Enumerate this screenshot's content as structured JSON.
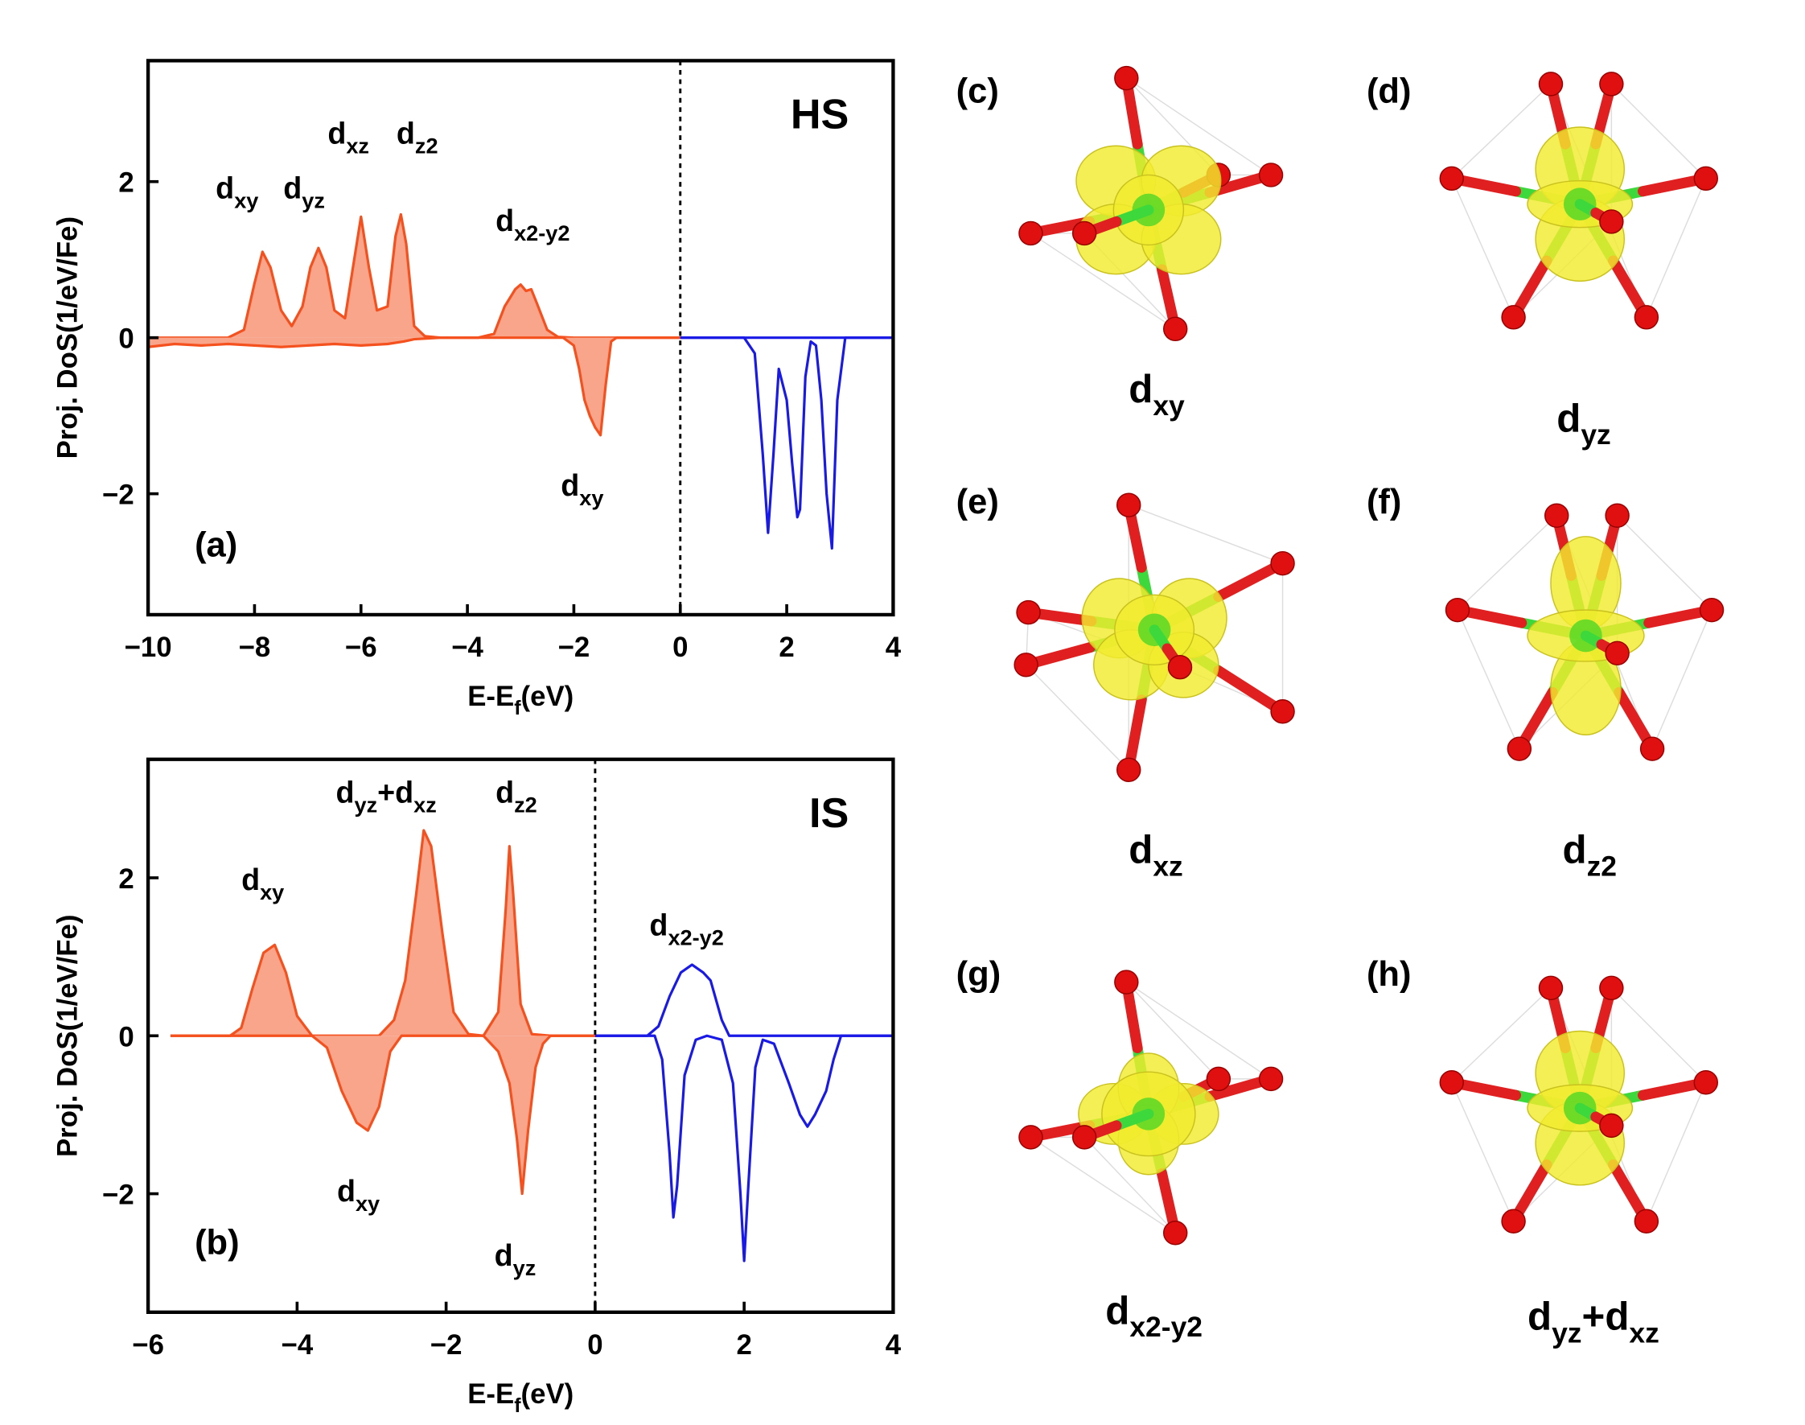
{
  "chart_data": [
    {
      "type": "line",
      "panel_label": "(a)",
      "state_label": "HS",
      "xlabel": [
        "E-E",
        "f",
        "(eV)"
      ],
      "ylabel": "Proj. DoS(1/eV/Fe)",
      "xlim": [
        -10,
        4
      ],
      "ylim": [
        -3.55,
        3.55
      ],
      "vline": 0,
      "xticks": [
        {
          "value": -10,
          "label": "−10"
        },
        {
          "value": -8,
          "label": "−8"
        },
        {
          "value": -6,
          "label": "−6"
        },
        {
          "value": -4,
          "label": "−4"
        },
        {
          "value": -2,
          "label": "−2"
        },
        0,
        2,
        4
      ],
      "yticks": [
        {
          "value": -2,
          "label": "−2"
        },
        0,
        2
      ],
      "annotations": [
        [
          "d",
          "xy"
        ],
        [
          "d",
          "yz"
        ],
        [
          "d",
          "xz"
        ],
        [
          "d",
          "z2"
        ],
        [
          "d",
          "x2-y2"
        ],
        [
          "d",
          "xy"
        ]
      ],
      "series": [
        {
          "color": "#f4511e",
          "fill": "#f8a58c",
          "x": [
            -10,
            -9,
            -8.5,
            -8.2,
            -8.0,
            -7.85,
            -7.7,
            -7.5,
            -7.3,
            -7.1,
            -6.95,
            -6.8,
            -6.65,
            -6.5,
            -6.3,
            -6.15,
            -6.0,
            -5.85,
            -5.7,
            -5.5,
            -5.35,
            -5.25,
            -5.15,
            -5.0,
            -4.8,
            -4.5,
            -3.8,
            -3.5,
            -3.3,
            -3.1,
            -3.0,
            -2.9,
            -2.8,
            -2.7,
            -2.5,
            -2.3,
            -2.0,
            0
          ],
          "values": [
            0,
            0,
            0,
            0.1,
            0.7,
            1.1,
            0.9,
            0.35,
            0.15,
            0.4,
            0.9,
            1.15,
            0.9,
            0.35,
            0.25,
            0.9,
            1.55,
            0.9,
            0.35,
            0.4,
            1.3,
            1.58,
            1.2,
            0.15,
            0.02,
            0,
            0,
            0.05,
            0.4,
            0.62,
            0.68,
            0.6,
            0.62,
            0.45,
            0.1,
            0.01,
            0,
            0
          ]
        },
        {
          "color": "#f4511e",
          "fill": "#f8a58c",
          "x": [
            -10,
            -9.5,
            -9,
            -8.5,
            -8,
            -7.5,
            -7,
            -6.5,
            -6,
            -5.5,
            -5.2,
            -5,
            -4.5,
            -2.2,
            -2.0,
            -1.9,
            -1.8,
            -1.7,
            -1.6,
            -1.5,
            -1.4,
            -1.3,
            -1.2,
            0
          ],
          "values": [
            -0.12,
            -0.08,
            -0.1,
            -0.08,
            -0.1,
            -0.12,
            -0.1,
            -0.08,
            -0.1,
            -0.08,
            -0.05,
            -0.02,
            0,
            0,
            -0.1,
            -0.4,
            -0.8,
            -1.0,
            -1.15,
            -1.25,
            -0.6,
            -0.05,
            0,
            0
          ]
        },
        {
          "color": "#1a1ae6",
          "x": [
            0,
            4
          ],
          "values": [
            0,
            0
          ]
        },
        {
          "color": "#1a1ae6",
          "x": [
            0,
            1.2,
            1.4,
            1.55,
            1.65,
            1.75,
            1.85,
            2.0,
            2.1,
            2.2,
            2.25,
            2.35,
            2.45,
            2.55,
            2.65,
            2.75,
            2.85,
            2.95,
            3.1,
            4
          ],
          "values": [
            0,
            0,
            -0.2,
            -1.5,
            -2.5,
            -1.5,
            -0.4,
            -0.8,
            -1.6,
            -2.3,
            -2.2,
            -0.5,
            -0.05,
            -0.1,
            -0.8,
            -2.0,
            -2.7,
            -0.8,
            0,
            0
          ]
        }
      ]
    },
    {
      "type": "line",
      "panel_label": "(b)",
      "state_label": "IS",
      "xlabel": [
        "E-E",
        "f",
        "(eV)"
      ],
      "ylabel": "Proj. DoS(1/eV/Fe)",
      "xlim": [
        -6,
        4
      ],
      "ylim": [
        -3.5,
        3.5
      ],
      "vline": 0,
      "xticks": [
        {
          "value": -6,
          "label": "−6"
        },
        {
          "value": -4,
          "label": "−4"
        },
        {
          "value": -2,
          "label": "−2"
        },
        0,
        2,
        4
      ],
      "yticks": [
        {
          "value": -2,
          "label": "−2"
        },
        0,
        2
      ],
      "annotations": [
        [
          "d",
          "xy"
        ],
        [
          "d",
          "yz",
          "+d",
          "xz"
        ],
        [
          "d",
          "z2"
        ],
        [
          "d",
          "x2-y2"
        ],
        [
          "d",
          "xy"
        ],
        [
          "d",
          "yz"
        ]
      ],
      "series": [
        {
          "color": "#f4511e",
          "fill": "#f8a58c",
          "x": [
            -5.7,
            -4.9,
            -4.75,
            -4.6,
            -4.45,
            -4.3,
            -4.15,
            -4.0,
            -3.8,
            -2.9,
            -2.7,
            -2.55,
            -2.4,
            -2.3,
            -2.2,
            -2.05,
            -1.9,
            -1.7,
            -1.5,
            -1.3,
            -1.2,
            -1.15,
            -1.1,
            -1.0,
            -0.85,
            -0.6,
            0
          ],
          "values": [
            0,
            0,
            0.1,
            0.6,
            1.05,
            1.15,
            0.8,
            0.25,
            0,
            0,
            0.2,
            0.7,
            1.8,
            2.6,
            2.4,
            1.3,
            0.3,
            0.02,
            0,
            0.3,
            1.6,
            2.4,
            1.8,
            0.4,
            0.02,
            0,
            0
          ]
        },
        {
          "color": "#f4511e",
          "fill": "#f8a58c",
          "x": [
            -5.7,
            -3.8,
            -3.6,
            -3.4,
            -3.2,
            -3.05,
            -2.9,
            -2.75,
            -2.6,
            -1.5,
            -1.3,
            -1.15,
            -1.05,
            -0.98,
            -0.9,
            -0.8,
            -0.7,
            -0.6,
            0
          ],
          "values": [
            0,
            0,
            -0.15,
            -0.7,
            -1.1,
            -1.2,
            -0.9,
            -0.2,
            0,
            0,
            -0.2,
            -0.6,
            -1.3,
            -2.0,
            -1.2,
            -0.4,
            -0.1,
            0,
            0
          ]
        },
        {
          "color": "#1a1ae6",
          "x": [
            0,
            0.7,
            0.85,
            1.0,
            1.15,
            1.3,
            1.45,
            1.55,
            1.7,
            1.8,
            4
          ],
          "values": [
            0,
            0,
            0.12,
            0.5,
            0.8,
            0.9,
            0.8,
            0.7,
            0.2,
            0,
            0
          ]
        },
        {
          "color": "#1a1ae6",
          "x": [
            0,
            0.8,
            0.9,
            1.0,
            1.05,
            1.1,
            1.2,
            1.35,
            1.5,
            1.7,
            1.85,
            1.95,
            2.0,
            2.05,
            2.15,
            2.25,
            2.4,
            2.6,
            2.75,
            2.85,
            2.95,
            3.1,
            3.2,
            3.3,
            4
          ],
          "values": [
            0,
            0,
            -0.3,
            -1.5,
            -2.3,
            -1.9,
            -0.5,
            -0.05,
            0,
            -0.05,
            -0.6,
            -2.0,
            -2.85,
            -2.0,
            -0.4,
            -0.05,
            -0.1,
            -0.6,
            -1.0,
            -1.15,
            -1.0,
            -0.7,
            -0.3,
            0,
            0
          ]
        }
      ]
    }
  ],
  "panels": [
    {
      "label": "(c)",
      "caption": [
        "d",
        "xy"
      ]
    },
    {
      "label": "(d)",
      "caption": [
        "d",
        "yz"
      ]
    },
    {
      "label": "(e)",
      "caption": [
        "d",
        "xz"
      ]
    },
    {
      "label": "(f)",
      "caption": [
        "d",
        "z2"
      ]
    },
    {
      "label": "(g)",
      "caption": [
        "d",
        "x2-y2"
      ]
    },
    {
      "label": "(h)",
      "caption": [
        "d",
        "yz",
        "+d",
        "xz"
      ]
    }
  ]
}
